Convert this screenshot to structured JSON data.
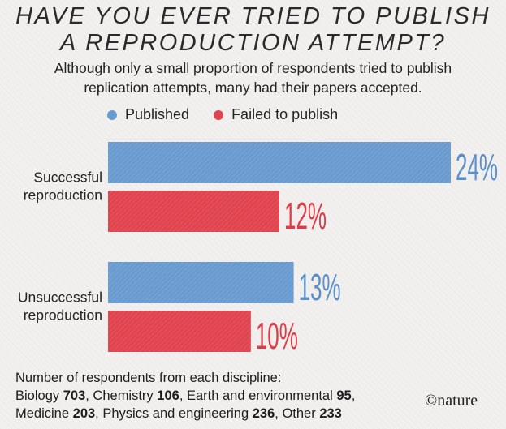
{
  "title": {
    "line1": "HAVE YOU EVER TRIED TO PUBLISH",
    "line2": "A REPRODUCTION ATTEMPT?"
  },
  "subtitle": {
    "line1": "Although only a small proportion of respondents tried to publish",
    "line2": "replication attempts, many had their papers accepted."
  },
  "colors": {
    "published": "#6a9bd0",
    "failed": "#e0444e",
    "value_published": "#5b8fca",
    "value_failed": "#de3d48"
  },
  "chart_data": {
    "type": "bar",
    "orientation": "horizontal",
    "categories": [
      "Successful reproduction",
      "Unsuccessful reproduction"
    ],
    "category_label_lines": [
      [
        "Successful",
        "reproduction"
      ],
      [
        "Unsuccessful",
        "reproduction"
      ]
    ],
    "series": [
      {
        "name": "Published",
        "values": [
          24,
          13
        ],
        "labels": [
          "24%",
          "13%"
        ]
      },
      {
        "name": "Failed to publish",
        "values": [
          12,
          10
        ],
        "labels": [
          "12%",
          "10%"
        ]
      }
    ],
    "unit": "%",
    "xlim": [
      0,
      24
    ],
    "grid": false,
    "legend": "top-left"
  },
  "footer": {
    "intro": "Number of respondents from each discipline:",
    "disciplines": [
      {
        "name": "Biology",
        "count": "703",
        "sep": ", "
      },
      {
        "name": "Chemistry",
        "count": "106",
        "sep": ", "
      },
      {
        "name": "Earth and environmental",
        "count": "95",
        "sep": ","
      },
      {
        "name": "Medicine",
        "count": "203",
        "sep": ", "
      },
      {
        "name": "Physics and engineering",
        "count": "236",
        "sep": ", "
      },
      {
        "name": "Other",
        "count": "233",
        "sep": ""
      }
    ]
  },
  "credit": "©nature"
}
